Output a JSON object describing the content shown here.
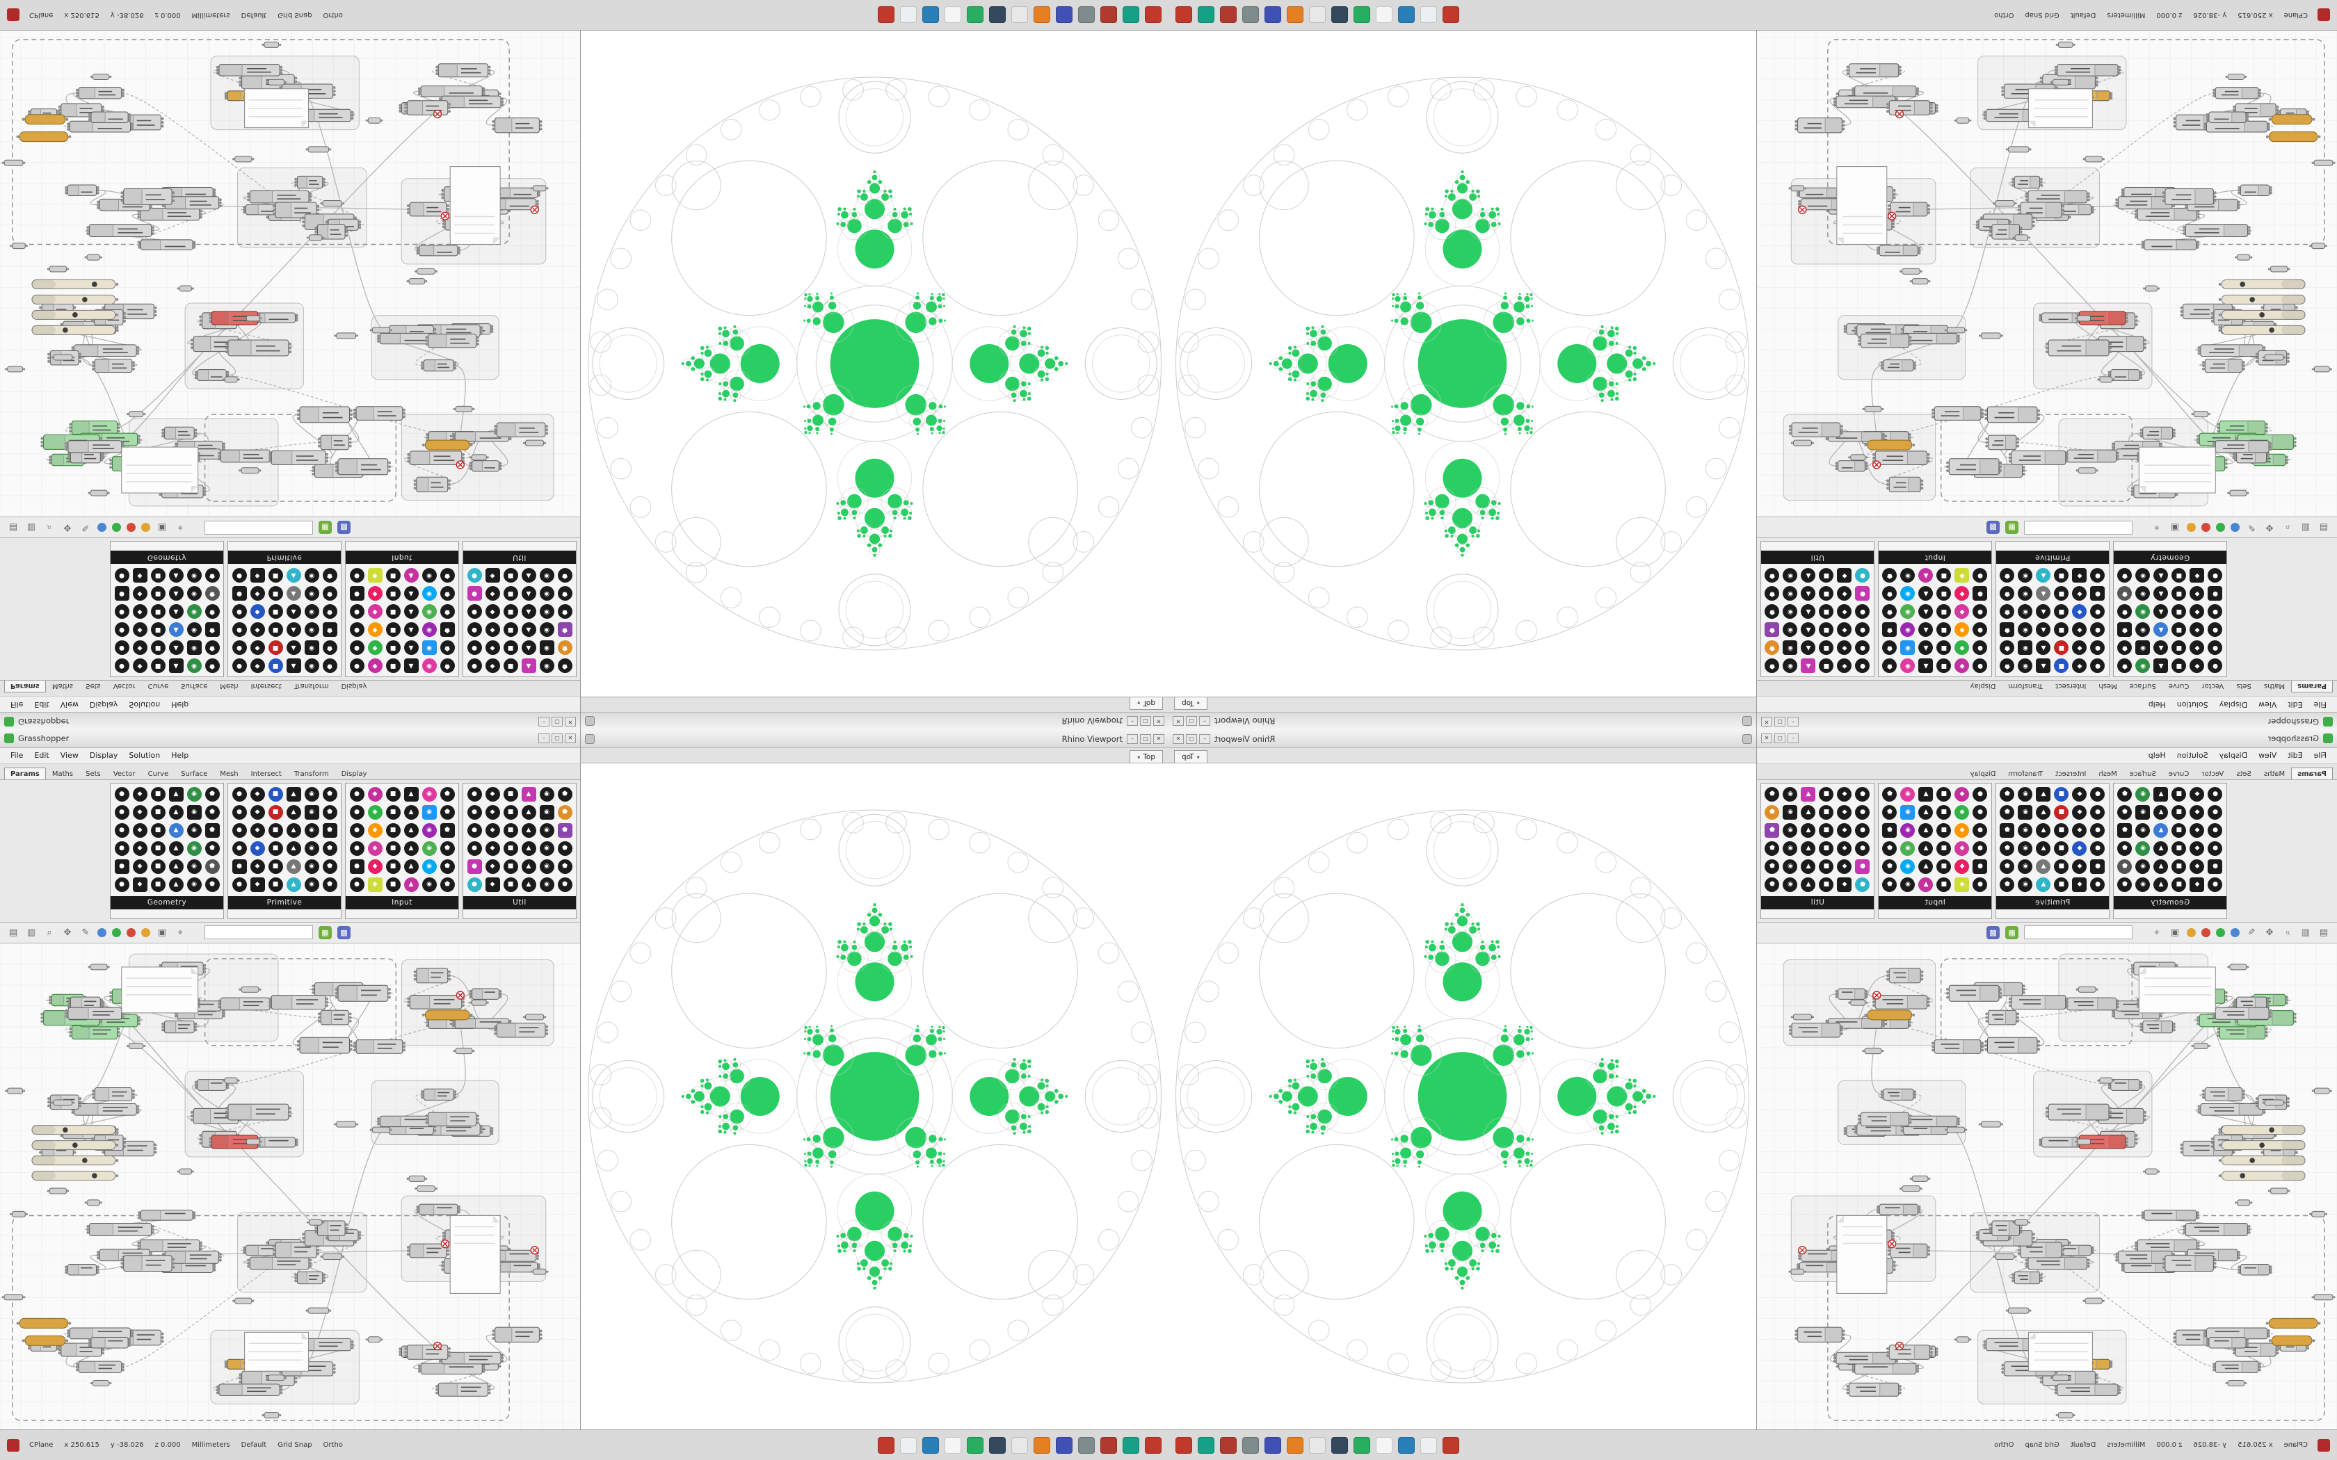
{
  "gh": {
    "title": "Grasshopper",
    "menus": [
      "File",
      "Edit",
      "View",
      "Display",
      "Solution",
      "Help"
    ],
    "tabs": [
      "Params",
      "Maths",
      "Sets",
      "Vector",
      "Curve",
      "Surface",
      "Mesh",
      "Intersect",
      "Transform",
      "Display"
    ],
    "active_tab": "Params",
    "icons_per_panel": 36,
    "palettes": [
      {
        "label": "Geometry",
        "accents": {
          "4": "#2e8f45",
          "15": "#3a7bd5",
          "22": "#2e8f45",
          "29": "#555555"
        }
      },
      {
        "label": "Primitive",
        "accents": {
          "2": "#2457c5",
          "8": "#c52424",
          "19": "#2457c5",
          "27": "#777777",
          "33": "#2fb5c9"
        }
      },
      {
        "label": "Input",
        "accents": {
          "1": "#c4309e",
          "4": "#e0399f",
          "7": "#2fb547",
          "10": "#2196f3",
          "13": "#ff9800",
          "16": "#9c27b0",
          "19": "#d4379e",
          "22": "#4caf50",
          "25": "#e91e63",
          "28": "#03a9f4",
          "31": "#cddc39",
          "33": "#c4309e"
        }
      },
      {
        "label": "Util",
        "accents": {
          "3": "#c636b0",
          "11": "#e08e2a",
          "17": "#8e44ad",
          "24": "#c636b0",
          "30": "#2fb5c9"
        }
      }
    ],
    "canvas_toolbar": {
      "items": [
        {
          "name": "open-file-icon",
          "glyph": "▤",
          "color": "#6a6a6a"
        },
        {
          "name": "save-file-icon",
          "glyph": "▥",
          "color": "#6a6a6a"
        },
        {
          "name": "zoom-icon",
          "glyph": "⌕",
          "color": "#6a6a6a"
        },
        {
          "name": "pan-icon",
          "glyph": "✥",
          "color": "#6a6a6a"
        },
        {
          "name": "sketch-icon",
          "glyph": "✎",
          "color": "#6a6a6a"
        },
        {
          "name": "wireframe-preview-icon",
          "type": "ball",
          "color": "#4a86d4"
        },
        {
          "name": "shaded-preview-icon",
          "type": "ball",
          "color": "#37b04a"
        },
        {
          "name": "rendered-preview-icon",
          "type": "ball",
          "color": "#d44a3a"
        },
        {
          "name": "preview-quality-icon",
          "type": "ball",
          "color": "#e0a42f"
        },
        {
          "name": "camera-icon",
          "glyph": "▣",
          "color": "#6a6a6a"
        },
        {
          "name": "focus-icon",
          "glyph": "⌖",
          "color": "#6a6a6a"
        },
        {
          "name": "canvas-search-input",
          "type": "search"
        },
        {
          "name": "grid-display-icon",
          "type": "chip",
          "glyph": "▦",
          "color": "#6fae3f"
        },
        {
          "name": "canvas-settings-icon",
          "type": "chip",
          "glyph": "▩",
          "color": "#5c6bc0"
        }
      ]
    }
  },
  "viewport": {
    "title": "Rhino Viewport",
    "tab": "Top"
  },
  "window_buttons": [
    {
      "name": "minimize-button",
      "glyph": "–"
    },
    {
      "name": "maximize-button",
      "glyph": "▢"
    },
    {
      "name": "close-button",
      "glyph": "✕"
    }
  ],
  "taskbar": {
    "status_tokens": [
      "CPlane",
      "x 250.615",
      "y -38.026",
      "z 0.000",
      "Millimeters",
      "Default",
      "Grid Snap",
      "Ortho"
    ],
    "app_icons": [
      {
        "name": "taskbar-app-icon",
        "color": "#c0392b"
      },
      {
        "name": "taskbar-app-icon",
        "color": "#ecf0f1"
      },
      {
        "name": "taskbar-app-icon",
        "color": "#2980b9"
      },
      {
        "name": "taskbar-app-icon",
        "color": "#f5f5f5"
      },
      {
        "name": "taskbar-app-icon",
        "color": "#27ae60"
      },
      {
        "name": "taskbar-app-icon",
        "color": "#34495e"
      },
      {
        "name": "taskbar-app-icon",
        "color": "#e8e8e8"
      },
      {
        "name": "taskbar-app-icon",
        "color": "#e67e22"
      },
      {
        "name": "taskbar-app-icon",
        "color": "#3f51b5"
      },
      {
        "name": "taskbar-app-icon",
        "color": "#7f8c8d"
      },
      {
        "name": "taskbar-app-icon",
        "color": "#b03a2e"
      },
      {
        "name": "taskbar-app-icon",
        "color": "#16a085"
      },
      {
        "name": "taskbar-app-icon",
        "color": "#c0392b"
      }
    ]
  },
  "fractal": {
    "green": "#29cf63",
    "stroke": "#cbcbcb",
    "outer_radius_ratio": 0.43,
    "center_radius_ratio": 0.155,
    "arm_child_ratio": 0.52,
    "diag_child_ratio": 0.37
  },
  "graph": {
    "seed": 11,
    "component_fill": "#d7d7d7",
    "component_stroke": "#5a5a5a",
    "selected_fill": "#a9dcab",
    "selected_stroke": "#2f7d33",
    "warning_fill": "#e9b44c",
    "error_fill": "#e06c65",
    "wire_color": "#b6b6b6",
    "slider_fill": "#e9e2cf",
    "panel_fill": "#fdfdfd",
    "amber_fill": "#d9a441",
    "group_dash_color": "#8f8f8f"
  }
}
